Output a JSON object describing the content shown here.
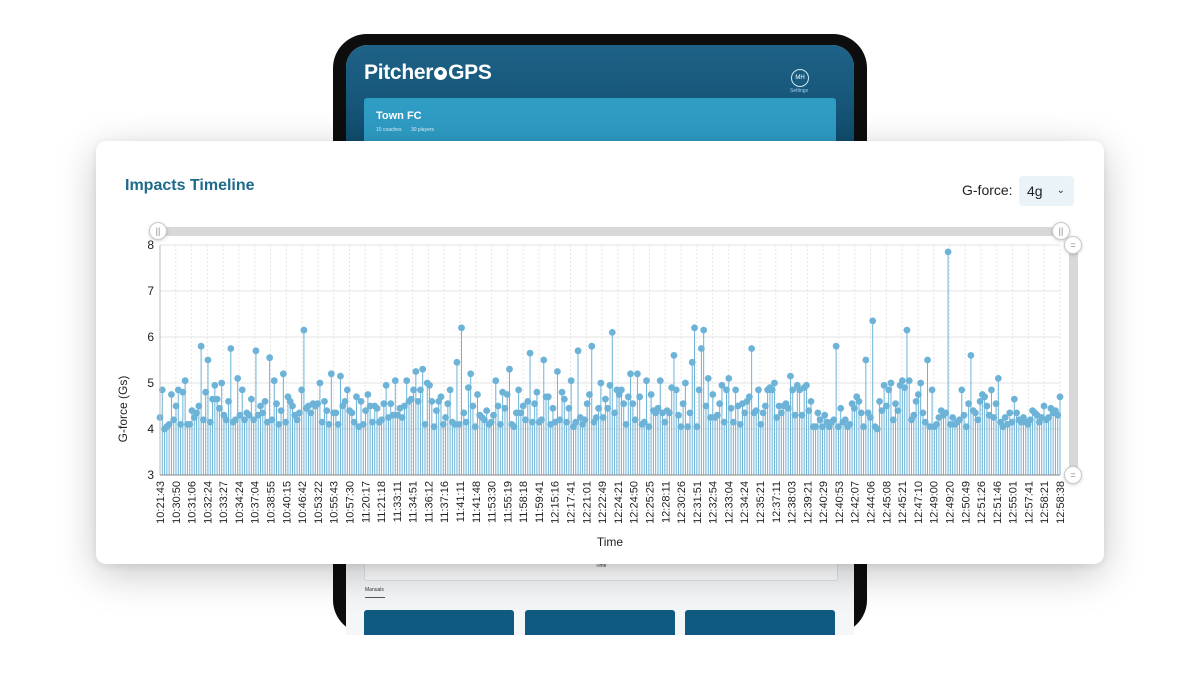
{
  "background_app": {
    "logo_text": "PitcheroGPS",
    "avatar_initials": "MH",
    "settings_label": "Settings",
    "club": {
      "name": "Town FC",
      "coaches": "10 coaches",
      "players": "30 players"
    },
    "mini_chart_xlabel": "Time",
    "manuals_label": "Manuals"
  },
  "card": {
    "title": "Impacts Timeline",
    "gforce_label": "G-force:",
    "gforce_value": "4g"
  },
  "colors": {
    "accent": "#1d6a8a",
    "series": "#6db3d8",
    "tablet_header": "#1e6388",
    "club_card": "#2f9cc4"
  },
  "chart_data": {
    "type": "bar",
    "style": "lollipop",
    "xlabel": "Time",
    "ylabel": "G-force (Gs)",
    "ylim": [
      3,
      8
    ],
    "yticks": [
      3,
      4,
      5,
      6,
      7,
      8
    ],
    "grid": true,
    "tick_labels": [
      "10:21:43",
      "10:30:50",
      "10:31:06",
      "10:32:24",
      "10:33:27",
      "10:34:24",
      "10:37:04",
      "10:38:55",
      "10:40:15",
      "10:46:42",
      "10:53:22",
      "10:55:43",
      "10:57:30",
      "11:20:17",
      "11:21:18",
      "11:33:11",
      "11:34:51",
      "11:36:12",
      "11:37:16",
      "11:41:11",
      "11:41:48",
      "11:53:30",
      "11:55:19",
      "11:58:18",
      "11:59:41",
      "12:15:16",
      "12:17:41",
      "12:21:01",
      "12:22:49",
      "12:24:21",
      "12:24:50",
      "12:25:25",
      "12:28:11",
      "12:30:26",
      "12:31:51",
      "12:32:54",
      "12:33:04",
      "12:34:24",
      "12:35:21",
      "12:37:11",
      "12:38:03",
      "12:39:21",
      "12:40:29",
      "12:40:53",
      "12:42:07",
      "12:44:06",
      "12:45:08",
      "12:45:21",
      "12:47:10",
      "12:49:00",
      "12:49:20",
      "12:50:49",
      "12:51:26",
      "12:51:46",
      "12:55:01",
      "12:57:41",
      "12:58:21",
      "12:58:38"
    ],
    "values": [
      4.25,
      4.85,
      4.0,
      4.05,
      4.1,
      4.75,
      4.2,
      4.5,
      4.85,
      4.1,
      4.8,
      5.05,
      4.1,
      4.1,
      4.4,
      4.25,
      4.35,
      4.5,
      5.8,
      4.2,
      4.8,
      5.5,
      4.15,
      4.65,
      4.95,
      4.65,
      4.45,
      5.0,
      4.3,
      4.2,
      4.6,
      5.75,
      4.15,
      4.2,
      5.1,
      4.3,
      4.85,
      4.2,
      4.35,
      4.3,
      4.65,
      4.2,
      5.7,
      4.3,
      4.5,
      4.35,
      4.6,
      4.15,
      5.55,
      4.2,
      5.05,
      4.55,
      4.1,
      4.4,
      5.2,
      4.15,
      4.7,
      4.6,
      4.5,
      4.3,
      4.2,
      4.35,
      4.85,
      6.15,
      4.45,
      4.5,
      4.35,
      4.55,
      4.5,
      4.55,
      5.0,
      4.15,
      4.6,
      4.4,
      4.1,
      5.2,
      4.35,
      4.35,
      4.1,
      5.15,
      4.5,
      4.6,
      4.85,
      4.4,
      4.35,
      4.15,
      4.7,
      4.05,
      4.6,
      4.1,
      4.4,
      4.75,
      4.5,
      4.15,
      4.5,
      4.45,
      4.15,
      4.2,
      4.55,
      4.95,
      4.25,
      4.55,
      4.3,
      5.05,
      4.3,
      4.45,
      4.25,
      4.5,
      5.05,
      4.6,
      4.65,
      4.85,
      5.25,
      4.6,
      4.85,
      5.3,
      4.1,
      5.0,
      4.95,
      4.6,
      4.05,
      4.4,
      4.6,
      4.7,
      4.1,
      4.25,
      4.55,
      4.85,
      4.15,
      4.1,
      5.45,
      4.1,
      6.2,
      4.35,
      4.15,
      4.9,
      5.2,
      4.5,
      4.05,
      4.75,
      4.3,
      4.25,
      4.2,
      4.4,
      4.1,
      4.15,
      4.3,
      5.05,
      4.5,
      4.1,
      4.8,
      4.45,
      4.75,
      5.3,
      4.1,
      4.05,
      4.35,
      4.85,
      4.35,
      4.5,
      4.2,
      4.6,
      5.65,
      4.15,
      4.55,
      4.8,
      4.15,
      4.2,
      5.5,
      4.7,
      4.7,
      4.1,
      4.45,
      4.15,
      5.25,
      4.2,
      4.8,
      4.65,
      4.15,
      4.45,
      5.05,
      4.05,
      4.15,
      5.7,
      4.25,
      4.1,
      4.2,
      4.55,
      4.75,
      5.8,
      4.15,
      4.25,
      4.45,
      5.0,
      4.25,
      4.65,
      4.45,
      4.95,
      6.1,
      4.35,
      4.85,
      4.75,
      4.85,
      4.55,
      4.1,
      4.7,
      5.2,
      4.55,
      4.2,
      5.2,
      4.7,
      4.1,
      4.15,
      5.05,
      4.05,
      4.75,
      4.4,
      4.35,
      4.45,
      5.05,
      4.35,
      4.15,
      4.4,
      4.35,
      4.9,
      5.6,
      4.85,
      4.3,
      4.05,
      4.55,
      5.0,
      4.05,
      4.35,
      5.45,
      6.2,
      4.05,
      4.85,
      5.75,
      6.15,
      4.5,
      5.1,
      4.25,
      4.75,
      4.25,
      4.3,
      4.55,
      4.95,
      4.15,
      4.85,
      5.1,
      4.45,
      4.15,
      4.85,
      4.5,
      4.1,
      4.55,
      4.35,
      4.6,
      4.7,
      5.75,
      4.35,
      4.4,
      4.85,
      4.1,
      4.35,
      4.5,
      4.85,
      4.9,
      4.85,
      5.0,
      4.25,
      4.5,
      4.35,
      4.5,
      4.55,
      4.45,
      5.15,
      4.85,
      4.3,
      4.95,
      4.85,
      4.3,
      4.9,
      4.95,
      4.4,
      4.6,
      4.05,
      4.05,
      4.35,
      4.2,
      4.05,
      4.3,
      4.15,
      4.05,
      4.15,
      4.2,
      5.8,
      4.05,
      4.45,
      4.15,
      4.2,
      4.05,
      4.1,
      4.55,
      4.45,
      4.7,
      4.6,
      4.35,
      4.05,
      5.5,
      4.35,
      4.25,
      6.35,
      4.05,
      4.0,
      4.6,
      4.4,
      4.95,
      4.5,
      4.85,
      5.0,
      4.2,
      4.55,
      4.4,
      4.95,
      5.05,
      4.9,
      6.15,
      5.05,
      4.2,
      4.3,
      4.6,
      4.75,
      5.0,
      4.35,
      4.15,
      5.5,
      4.05,
      4.85,
      4.05,
      4.1,
      4.25,
      4.4,
      4.3,
      4.35,
      7.85,
      4.1,
      4.25,
      4.1,
      4.15,
      4.2,
      4.85,
      4.3,
      4.05,
      4.55,
      5.6,
      4.4,
      4.35,
      4.2,
      4.6,
      4.75,
      4.7,
      4.5,
      4.3,
      4.85,
      4.25,
      4.55,
      5.1,
      4.15,
      4.05,
      4.25,
      4.1,
      4.35,
      4.15,
      4.65,
      4.35,
      4.2,
      4.15,
      4.25,
      4.15,
      4.1,
      4.2,
      4.4,
      4.35,
      4.3,
      4.15,
      4.25,
      4.5,
      4.2,
      4.25,
      4.45,
      4.35,
      4.4,
      4.3,
      4.7
    ]
  }
}
